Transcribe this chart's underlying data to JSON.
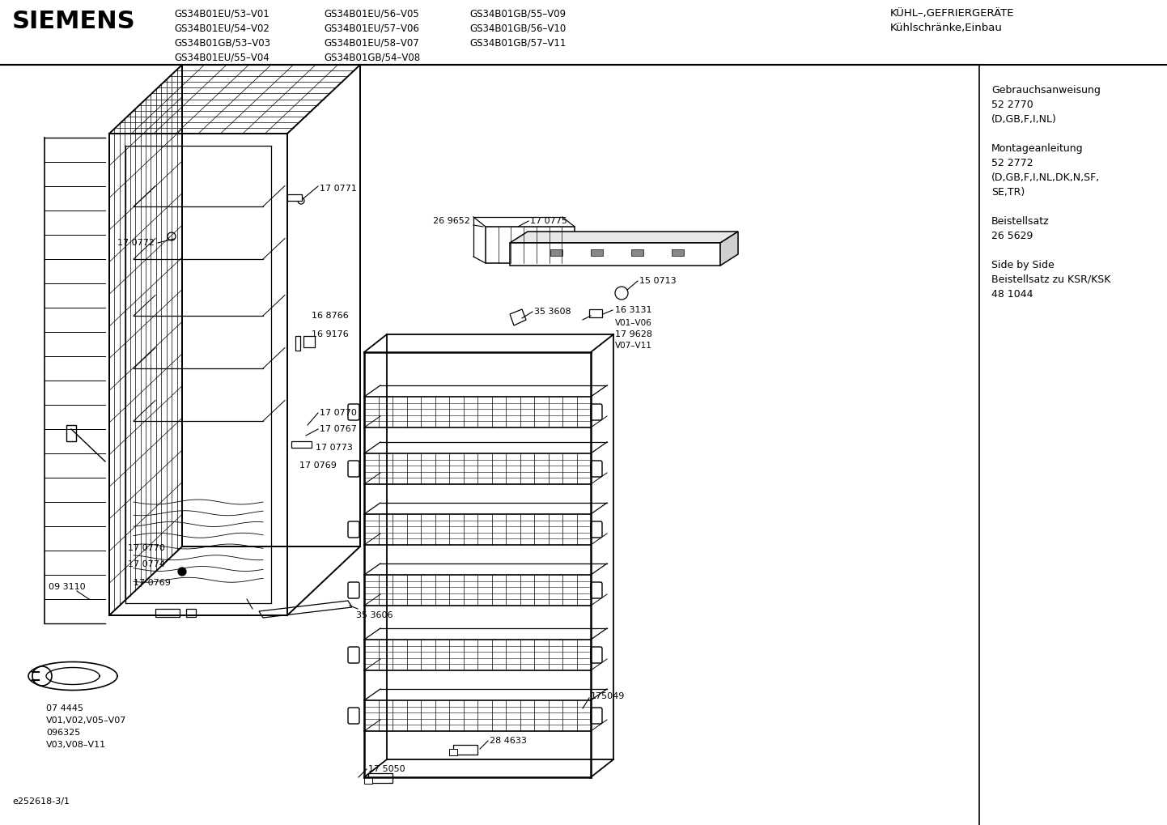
{
  "title": "SIEMENS",
  "header_models_col1": [
    "GS34B01EU/53–V01",
    "GS34B01EU/54–V02",
    "GS34B01GB/53–V03",
    "GS34B01EU/55–V04"
  ],
  "header_models_col2": [
    "GS34B01EU/56–V05",
    "GS34B01EU/57–V06",
    "GS34B01EU/58–V07",
    "GS34B01GB/54–V08"
  ],
  "header_models_col3": [
    "GS34B01GB/55–V09",
    "GS34B01GB/56–V10",
    "GS34B01GB/57–V11"
  ],
  "header_right_line1": "KÜHL–,GEFRIERGERÄTE",
  "header_right_line2": "Kühlschränke,Einbau",
  "right_panel_texts": [
    "Gebrauchsanweisung",
    "52 2770",
    "(D,GB,F,I,NL)",
    "",
    "Montageanleitung",
    "52 2772",
    "(D,GB,F,I,NL,DK,N,SF,",
    "SE,TR)",
    "",
    "Beistellsatz",
    "26 5629",
    "",
    "Side by Side",
    "Beistellsatz zu KSR/KSK",
    "48 1044"
  ],
  "footer_text": "e252618-3/1",
  "bg_color": "#ffffff",
  "text_color": "#000000",
  "line_color": "#000000"
}
